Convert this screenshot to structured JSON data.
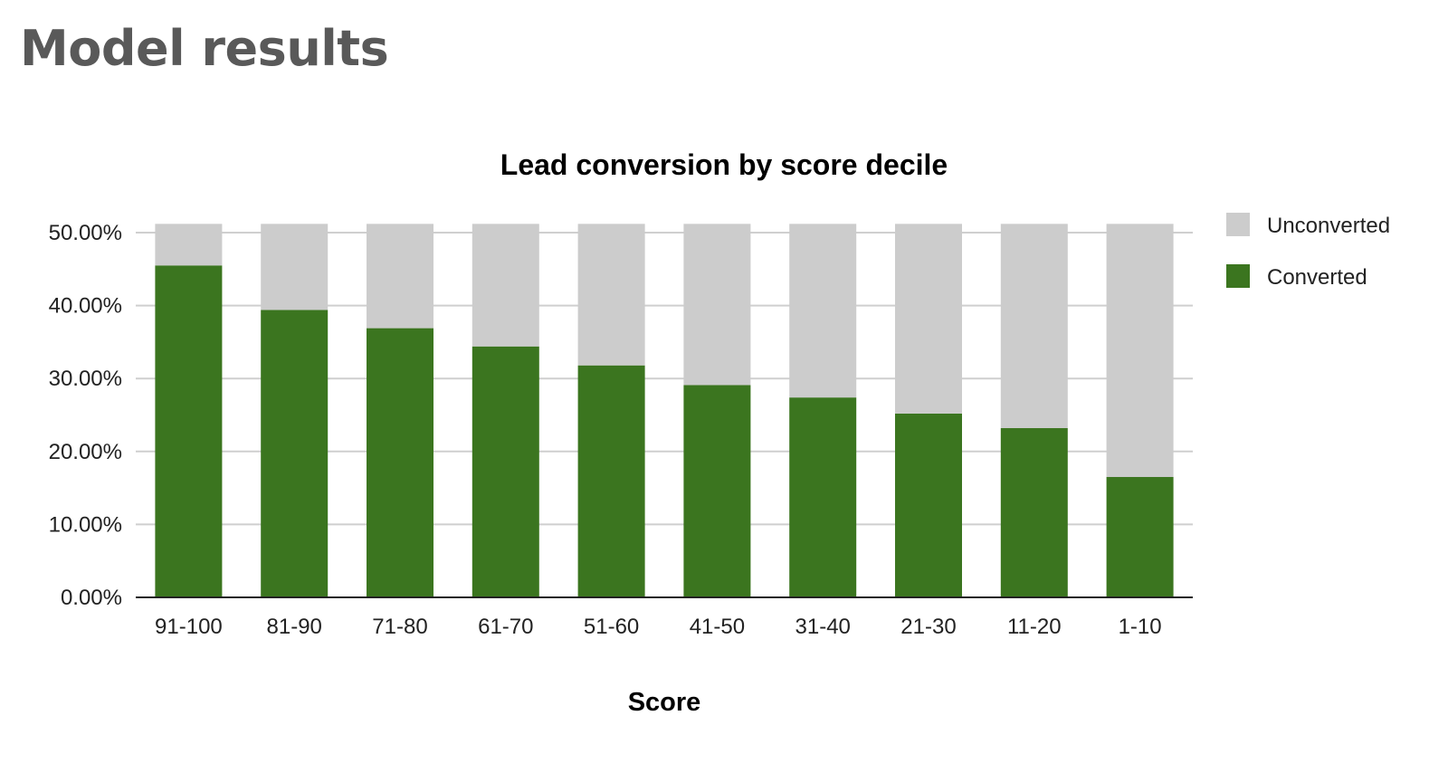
{
  "page": {
    "heading": "Model results"
  },
  "chart_data": {
    "type": "bar",
    "stacked": true,
    "title": "Lead conversion by score decile",
    "xlabel": "Score",
    "ylabel": "",
    "categories": [
      "91-100",
      "81-90",
      "71-80",
      "61-70",
      "51-60",
      "41-50",
      "31-40",
      "21-30",
      "11-20",
      "1-10"
    ],
    "series": [
      {
        "name": "Converted",
        "color": "#3b751f",
        "values": [
          45.5,
          39.4,
          36.9,
          34.4,
          31.8,
          29.1,
          27.4,
          25.2,
          23.2,
          16.5
        ]
      },
      {
        "name": "Unconverted",
        "color": "#cccccc",
        "values": [
          5.7,
          11.8,
          14.3,
          16.8,
          19.4,
          22.1,
          23.8,
          26.0,
          28.0,
          34.7
        ]
      }
    ],
    "yticks": [
      "0.00%",
      "10.00%",
      "20.00%",
      "30.00%",
      "40.00%",
      "50.00%"
    ],
    "ytick_values": [
      0,
      10,
      20,
      30,
      40,
      50
    ],
    "ylim": [
      0,
      50
    ],
    "grid": true,
    "legend_position": "right",
    "legend_order": [
      "Unconverted",
      "Converted"
    ],
    "colors": {
      "grid": "#cfcfcf",
      "axis": "#222222"
    }
  }
}
